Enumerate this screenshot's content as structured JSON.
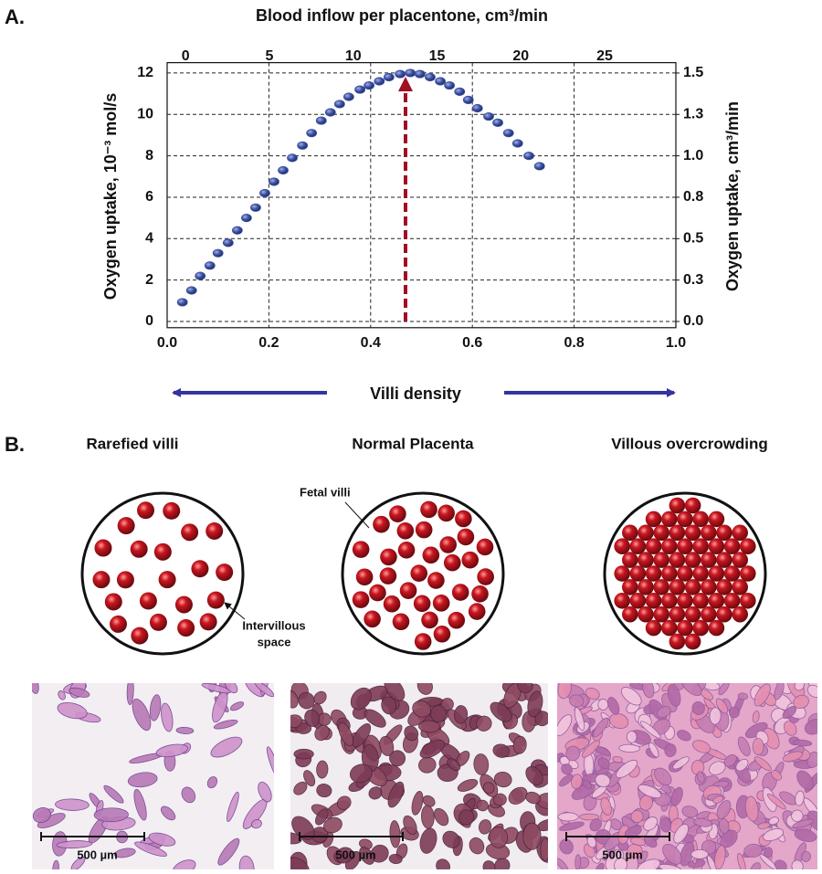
{
  "chart_data": {
    "type": "scatter",
    "x2_label": "Blood inflow per placentone, cm³/min",
    "y_label": "Oxygen uptake, 10⁻³ mol/s",
    "y2_label": "Oxygen uptake, cm³/min",
    "x_label": "Villi density",
    "color": "#3b4f9e",
    "x": [
      0.03,
      0.048,
      0.065,
      0.084,
      0.1,
      0.12,
      0.138,
      0.156,
      0.174,
      0.192,
      0.21,
      0.228,
      0.246,
      0.266,
      0.284,
      0.303,
      0.321,
      0.339,
      0.357,
      0.379,
      0.397,
      0.417,
      0.436,
      0.458,
      0.478,
      0.497,
      0.517,
      0.537,
      0.555,
      0.575,
      0.592,
      0.61,
      0.632,
      0.65,
      0.671,
      0.689,
      0.711,
      0.732
    ],
    "values": [
      0.93,
      1.5,
      2.2,
      2.7,
      3.3,
      3.8,
      4.4,
      5.0,
      5.5,
      6.2,
      6.75,
      7.3,
      7.9,
      8.5,
      9.1,
      9.7,
      10.1,
      10.5,
      10.85,
      11.2,
      11.4,
      11.6,
      11.8,
      11.95,
      12.0,
      11.95,
      11.8,
      11.6,
      11.4,
      11.1,
      10.7,
      10.3,
      9.9,
      9.6,
      9.1,
      8.6,
      8.0,
      7.5
    ],
    "xlim": [
      0,
      1
    ],
    "xticks": [
      {
        "value": 0,
        "label": "0.0"
      },
      0.2,
      0.4,
      0.6,
      0.8,
      {
        "value": 1,
        "label": "1.0"
      }
    ],
    "x2lim": [
      -1.1,
      29.25
    ],
    "x2ticks": [
      0,
      5,
      10,
      15,
      20,
      25
    ],
    "ylim": [
      -0.3,
      12.5
    ],
    "yticks": [
      0,
      2,
      4,
      6,
      8,
      10,
      12
    ],
    "y2lim": [
      -0.0375,
      1.5625
    ],
    "y2ticks": [
      {
        "value": 0,
        "label": "0.0"
      },
      {
        "value": 0.25,
        "label": "0.3"
      },
      0.5,
      {
        "value": 0.75,
        "label": "0.8"
      },
      {
        "value": 1,
        "label": "1.0"
      },
      {
        "value": 1.25,
        "label": "1.3"
      },
      1.5
    ],
    "grid": true
  },
  "panel_labels": [
    "A.",
    "B."
  ],
  "panels": [
    {
      "title": "Rarefied villi",
      "scale_bar": "500 µm"
    },
    {
      "title": "Normal Placenta",
      "scale_bar": "500 µm"
    },
    {
      "title": "Villous overcrowding",
      "scale_bar": "500 µm"
    }
  ],
  "annotations": {
    "fetal_villi": "Fetal villi",
    "intervillous_space": [
      "Intervillous",
      "space"
    ]
  }
}
